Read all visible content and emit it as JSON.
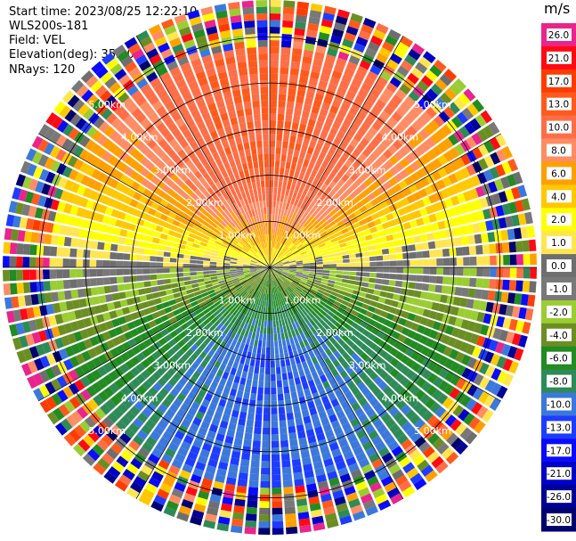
{
  "info": {
    "start_time": "Start time: 2023/08/25 12:22:10",
    "site": "WLS200s-181",
    "field": "Field: VEL",
    "elevation": "Elevation(deg): 35.30",
    "nrays": "NRays: 120"
  },
  "chart_data": {
    "type": "heatmap",
    "projection": "polar-ppi",
    "title": "",
    "max_range_km": 5.8,
    "ring_labels": [
      {
        "range_km": 1.0,
        "label": "1.00km"
      },
      {
        "range_km": 2.0,
        "label": "2.00km"
      },
      {
        "range_km": 3.0,
        "label": "3.00km"
      },
      {
        "range_km": 4.0,
        "label": "4.00km"
      },
      {
        "range_km": 5.0,
        "label": "5.00km"
      }
    ],
    "label_angles_deg": [
      -45,
      45,
      135,
      225
    ],
    "spokes_deg": [
      0,
      30,
      60,
      90,
      120,
      150,
      180,
      210,
      240,
      270,
      300,
      330
    ],
    "colorbar": {
      "unit": "m/s",
      "ticks": [
        "26.0",
        "21.0",
        "17.0",
        "13.0",
        "10.0",
        "8.0",
        "6.0",
        "4.0",
        "2.0",
        "1.0",
        "0.0",
        "-1.0",
        "-2.0",
        "-4.0",
        "-6.0",
        "-8.0",
        "-10.0",
        "-13.0",
        "-17.0",
        "-21.0",
        "-26.0",
        "-30.0"
      ],
      "colors": [
        "#e8258c",
        "#ff0a14",
        "#ff3c00",
        "#ff5a1e",
        "#ff6e46",
        "#ff8c64",
        "#ffa000",
        "#ffc800",
        "#ffff00",
        "#ffe650",
        "#6e6e6e",
        "#787878",
        "#9acd32",
        "#6b8e23",
        "#228b22",
        "#2e8b57",
        "#3c78dc",
        "#1e3cff",
        "#0a0aff",
        "#0000c8",
        "#000096",
        "#00006e"
      ]
    },
    "velocity_pattern": {
      "north_value": 13.0,
      "south_value": -10.0,
      "noisy_beyond_km": 4.8
    }
  }
}
